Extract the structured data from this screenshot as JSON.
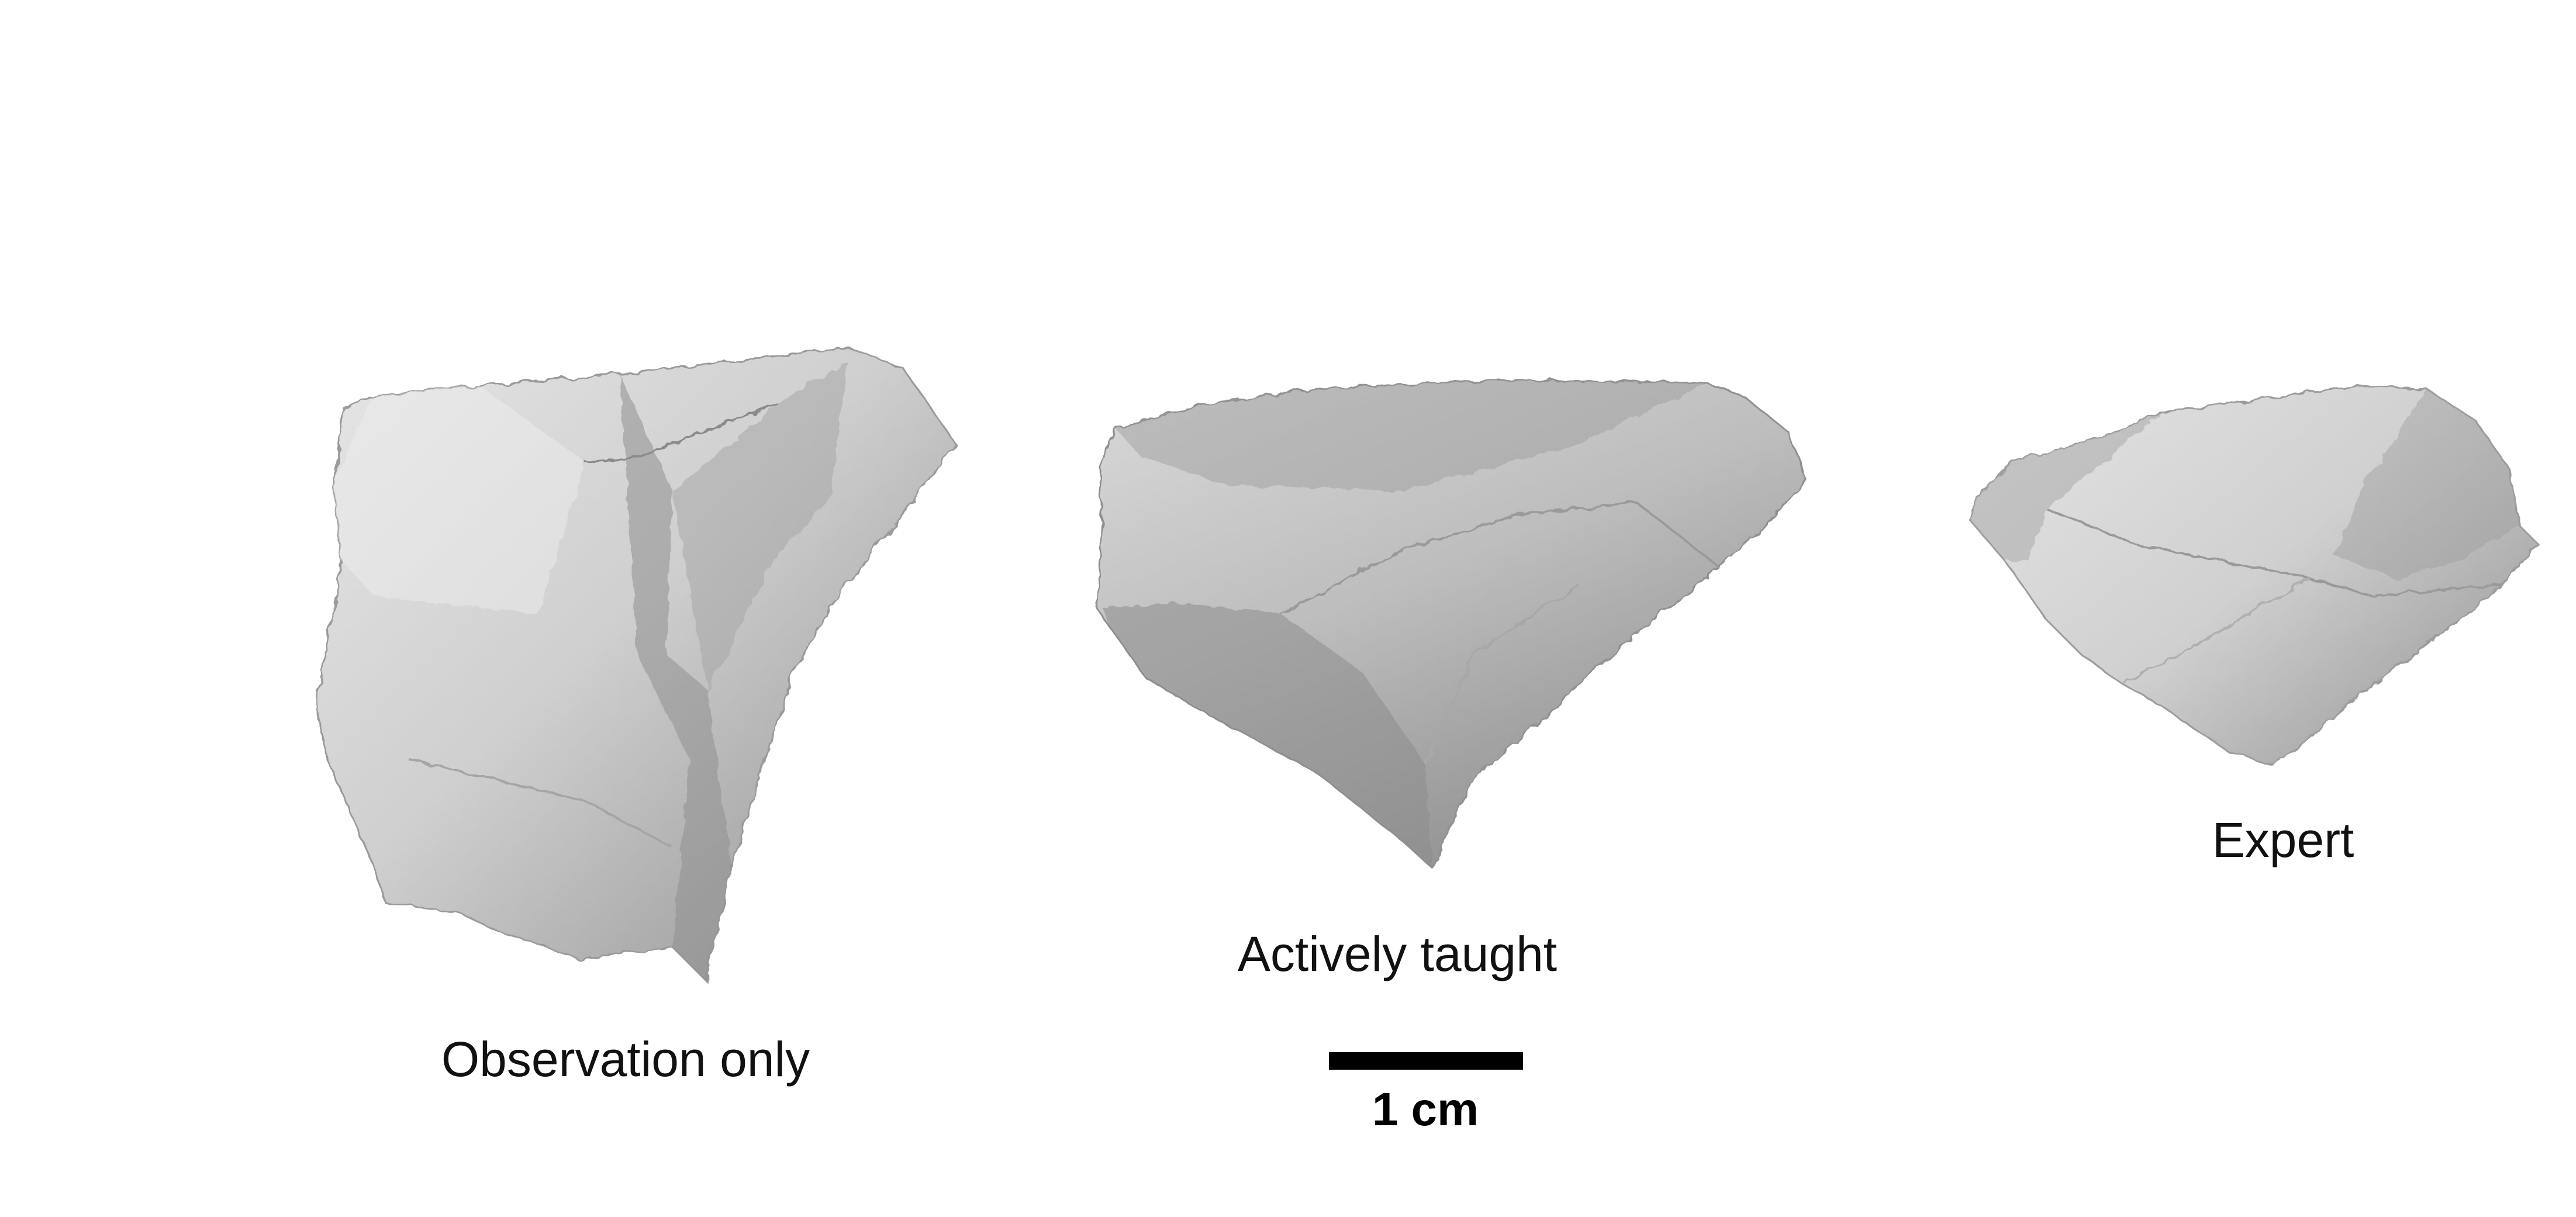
{
  "figure": {
    "specimens": [
      {
        "id": "observation-only",
        "label": "Observation only"
      },
      {
        "id": "actively-taught",
        "label": "Actively taught"
      },
      {
        "id": "expert",
        "label": "Expert"
      }
    ],
    "scale_bar": {
      "label": "1 cm"
    },
    "colors": {
      "background": "#ffffff",
      "stone_light": "#dedede",
      "stone_mid": "#b8b8b8",
      "stone_dark": "#7c7c7c",
      "text": "#111111"
    }
  }
}
